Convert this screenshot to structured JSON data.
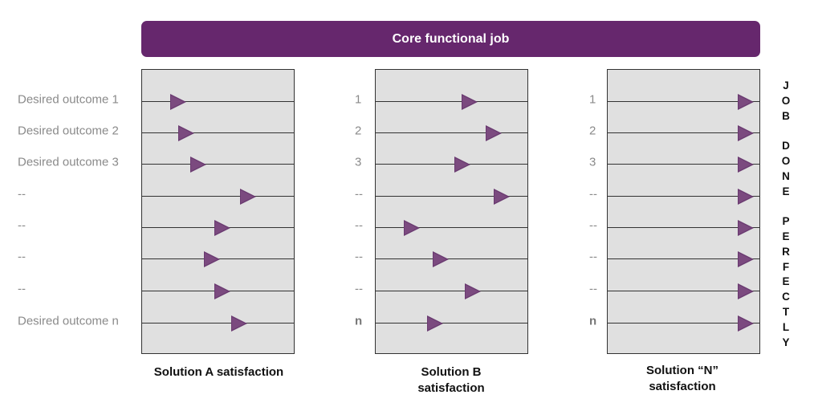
{
  "banner": {
    "title": "Core functional job",
    "color": "#66276d"
  },
  "labels": {
    "panelA": [
      "Desired outcome 1",
      "Desired outcome 2",
      "Desired outcome 3",
      "--",
      "--",
      "--",
      "--",
      "Desired outcome n"
    ],
    "panelB": [
      "1",
      "2",
      "3",
      "--",
      "--",
      "--",
      "--",
      "n"
    ],
    "panelN": [
      "1",
      "2",
      "3",
      "--",
      "--",
      "--",
      "--",
      "n"
    ]
  },
  "panels": [
    {
      "caption": "Solution A satisfaction",
      "levels": [
        0.24,
        0.29,
        0.37,
        0.7,
        0.53,
        0.46,
        0.53,
        0.64
      ]
    },
    {
      "caption": "Solution B satisfaction",
      "levels": [
        0.62,
        0.78,
        0.57,
        0.83,
        0.24,
        0.43,
        0.64,
        0.39
      ]
    },
    {
      "caption": "Solution “N” satisfaction",
      "levels": [
        0.91,
        0.91,
        0.91,
        0.91,
        0.91,
        0.91,
        0.91,
        0.91
      ]
    }
  ],
  "side_text": [
    "J",
    "O",
    "B",
    "",
    "D",
    "O",
    "N",
    "E",
    "",
    "P",
    "E",
    "R",
    "F",
    "E",
    "C",
    "T",
    "L",
    "Y"
  ],
  "arrow_color": "#6a3a70"
}
